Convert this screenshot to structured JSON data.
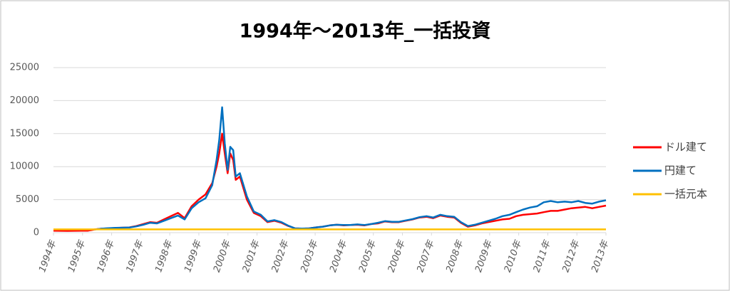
{
  "chart_data": {
    "type": "line",
    "title": "1994年～2013年_一括投資",
    "x": [
      1994,
      1994.24,
      1994.48,
      1994.71,
      1994.95,
      1995.19,
      1995.43,
      1995.66,
      1995.9,
      1996.14,
      1996.38,
      1996.61,
      1996.85,
      1997.09,
      1997.33,
      1997.56,
      1997.8,
      1998.04,
      1998.28,
      1998.51,
      1998.75,
      1998.99,
      1999.23,
      1999.46,
      1999.61,
      1999.7,
      1999.8,
      1999.89,
      1999.99,
      2000.08,
      2000.18,
      2000.27,
      2000.41,
      2000.65,
      2000.89,
      2001.13,
      2001.36,
      2001.6,
      2001.84,
      2002.08,
      2002.31,
      2002.55,
      2002.79,
      2003.03,
      2003.26,
      2003.5,
      2003.74,
      2003.98,
      2004.21,
      2004.45,
      2004.69,
      2004.93,
      2005.16,
      2005.4,
      2005.64,
      2005.88,
      2006.11,
      2006.35,
      2006.59,
      2006.83,
      2007.06,
      2007.3,
      2007.54,
      2007.78,
      2008.01,
      2008.25,
      2008.49,
      2008.73,
      2008.96,
      2009.2,
      2009.44,
      2009.68,
      2009.91,
      2010.15,
      2010.39,
      2010.63,
      2010.86,
      2011.1,
      2011.34,
      2011.58,
      2011.81,
      2012.05,
      2012.29,
      2012.53,
      2012.76,
      2013
    ],
    "series": [
      {
        "name": "ドル建て",
        "color": "#ff0000",
        "values": [
          300,
          280,
          270,
          280,
          290,
          300,
          500,
          600,
          650,
          700,
          750,
          800,
          1000,
          1300,
          1600,
          1500,
          2000,
          2500,
          3000,
          2200,
          4000,
          5000,
          5800,
          7500,
          10000,
          12000,
          15000,
          12000,
          9000,
          12000,
          11000,
          8000,
          8500,
          5000,
          3000,
          2500,
          1600,
          1800,
          1500,
          1000,
          650,
          600,
          650,
          800,
          900,
          1100,
          1200,
          1100,
          1150,
          1200,
          1100,
          1300,
          1400,
          1700,
          1600,
          1600,
          1800,
          2000,
          2300,
          2400,
          2200,
          2600,
          2400,
          2300,
          1500,
          900,
          1100,
          1400,
          1600,
          1800,
          2000,
          2100,
          2500,
          2700,
          2800,
          2900,
          3100,
          3300,
          3300,
          3500,
          3700,
          3800,
          3900,
          3700,
          3900,
          4100
        ]
      },
      {
        "name": "円建て",
        "color": "#0070c0",
        "values": [
          null,
          null,
          null,
          null,
          null,
          null,
          480,
          600,
          680,
          720,
          750,
          780,
          950,
          1200,
          1500,
          1400,
          1800,
          2200,
          2600,
          2000,
          3700,
          4600,
          5200,
          7200,
          11000,
          14000,
          19000,
          13500,
          9500,
          13000,
          12500,
          8500,
          9000,
          5500,
          3200,
          2700,
          1700,
          1900,
          1600,
          1050,
          650,
          620,
          650,
          800,
          900,
          1100,
          1200,
          1150,
          1150,
          1250,
          1150,
          1300,
          1500,
          1750,
          1650,
          1650,
          1850,
          2050,
          2350,
          2500,
          2300,
          2700,
          2500,
          2400,
          1600,
          1000,
          1200,
          1500,
          1800,
          2100,
          2500,
          2700,
          3100,
          3500,
          3800,
          4000,
          4600,
          4800,
          4600,
          4700,
          4600,
          4800,
          4500,
          4400,
          4700,
          4900
        ]
      },
      {
        "name": "一括元本",
        "color": "#ffc000",
        "x": [
          1994,
          2013
        ],
        "values": [
          500,
          500
        ]
      }
    ],
    "xlim": [
      1994,
      2013
    ],
    "xticks": [
      {
        "value": 1994,
        "label": "1994年"
      },
      {
        "value": 1995,
        "label": "1995年"
      },
      {
        "value": 1996,
        "label": "1996年"
      },
      {
        "value": 1997,
        "label": "1997年"
      },
      {
        "value": 1998,
        "label": "1998年"
      },
      {
        "value": 1999,
        "label": "1999年"
      },
      {
        "value": 2000,
        "label": "2000年"
      },
      {
        "value": 2001,
        "label": "2001年"
      },
      {
        "value": 2002,
        "label": "2002年"
      },
      {
        "value": 2003,
        "label": "2003年"
      },
      {
        "value": 2004,
        "label": "2004年"
      },
      {
        "value": 2005,
        "label": "2005年"
      },
      {
        "value": 2006,
        "label": "2006年"
      },
      {
        "value": 2007,
        "label": "2007年"
      },
      {
        "value": 2008,
        "label": "2008年"
      },
      {
        "value": 2009,
        "label": "2009年"
      },
      {
        "value": 2010,
        "label": "2010年"
      },
      {
        "value": 2011,
        "label": "2011年"
      },
      {
        "value": 2012,
        "label": "2012年"
      },
      {
        "value": 2013,
        "label": "2013年"
      }
    ],
    "ylim": [
      0,
      25000
    ],
    "yticks": [
      0,
      5000,
      10000,
      15000,
      20000,
      25000
    ],
    "grid": true,
    "legend": "right"
  }
}
